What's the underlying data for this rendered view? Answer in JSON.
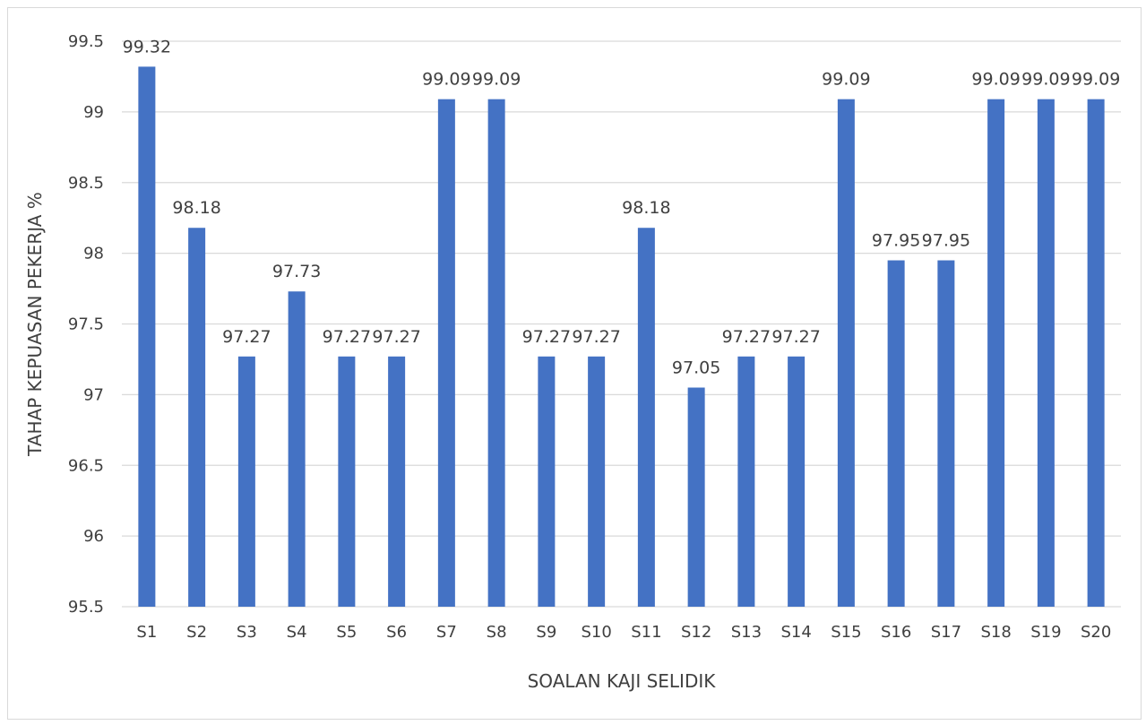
{
  "chart_data": {
    "type": "bar",
    "title": "",
    "xlabel": "SOALAN KAJI SELIDIK",
    "ylabel": "TAHAP KEPUASAN PEKERJA %",
    "ylim": [
      95.5,
      99.5
    ],
    "yticks": [
      "95.5",
      "96",
      "96.5",
      "97",
      "97.5",
      "98",
      "98.5",
      "99",
      "99.5"
    ],
    "grid": true,
    "legend": "none",
    "bar_color": "#4472c4",
    "categories": [
      "S1",
      "S2",
      "S3",
      "S4",
      "S5",
      "S6",
      "S7",
      "S8",
      "S9",
      "S10",
      "S11",
      "S12",
      "S13",
      "S14",
      "S15",
      "S16",
      "S17",
      "S18",
      "S19",
      "S20"
    ],
    "values": [
      99.32,
      98.18,
      97.27,
      97.73,
      97.27,
      97.27,
      99.09,
      99.09,
      97.27,
      97.27,
      98.18,
      97.05,
      97.27,
      97.27,
      99.09,
      97.95,
      97.95,
      99.09,
      99.09,
      99.09
    ],
    "data_labels": [
      "99.32",
      "98.18",
      "97.27",
      "97.73",
      "97.27",
      "97.27",
      "99.09",
      "99.09",
      "97.27",
      "97.27",
      "98.18",
      "97.05",
      "97.27",
      "97.27",
      "99.09",
      "97.95",
      "97.95",
      "99.09",
      "99.09",
      "99.09"
    ]
  }
}
